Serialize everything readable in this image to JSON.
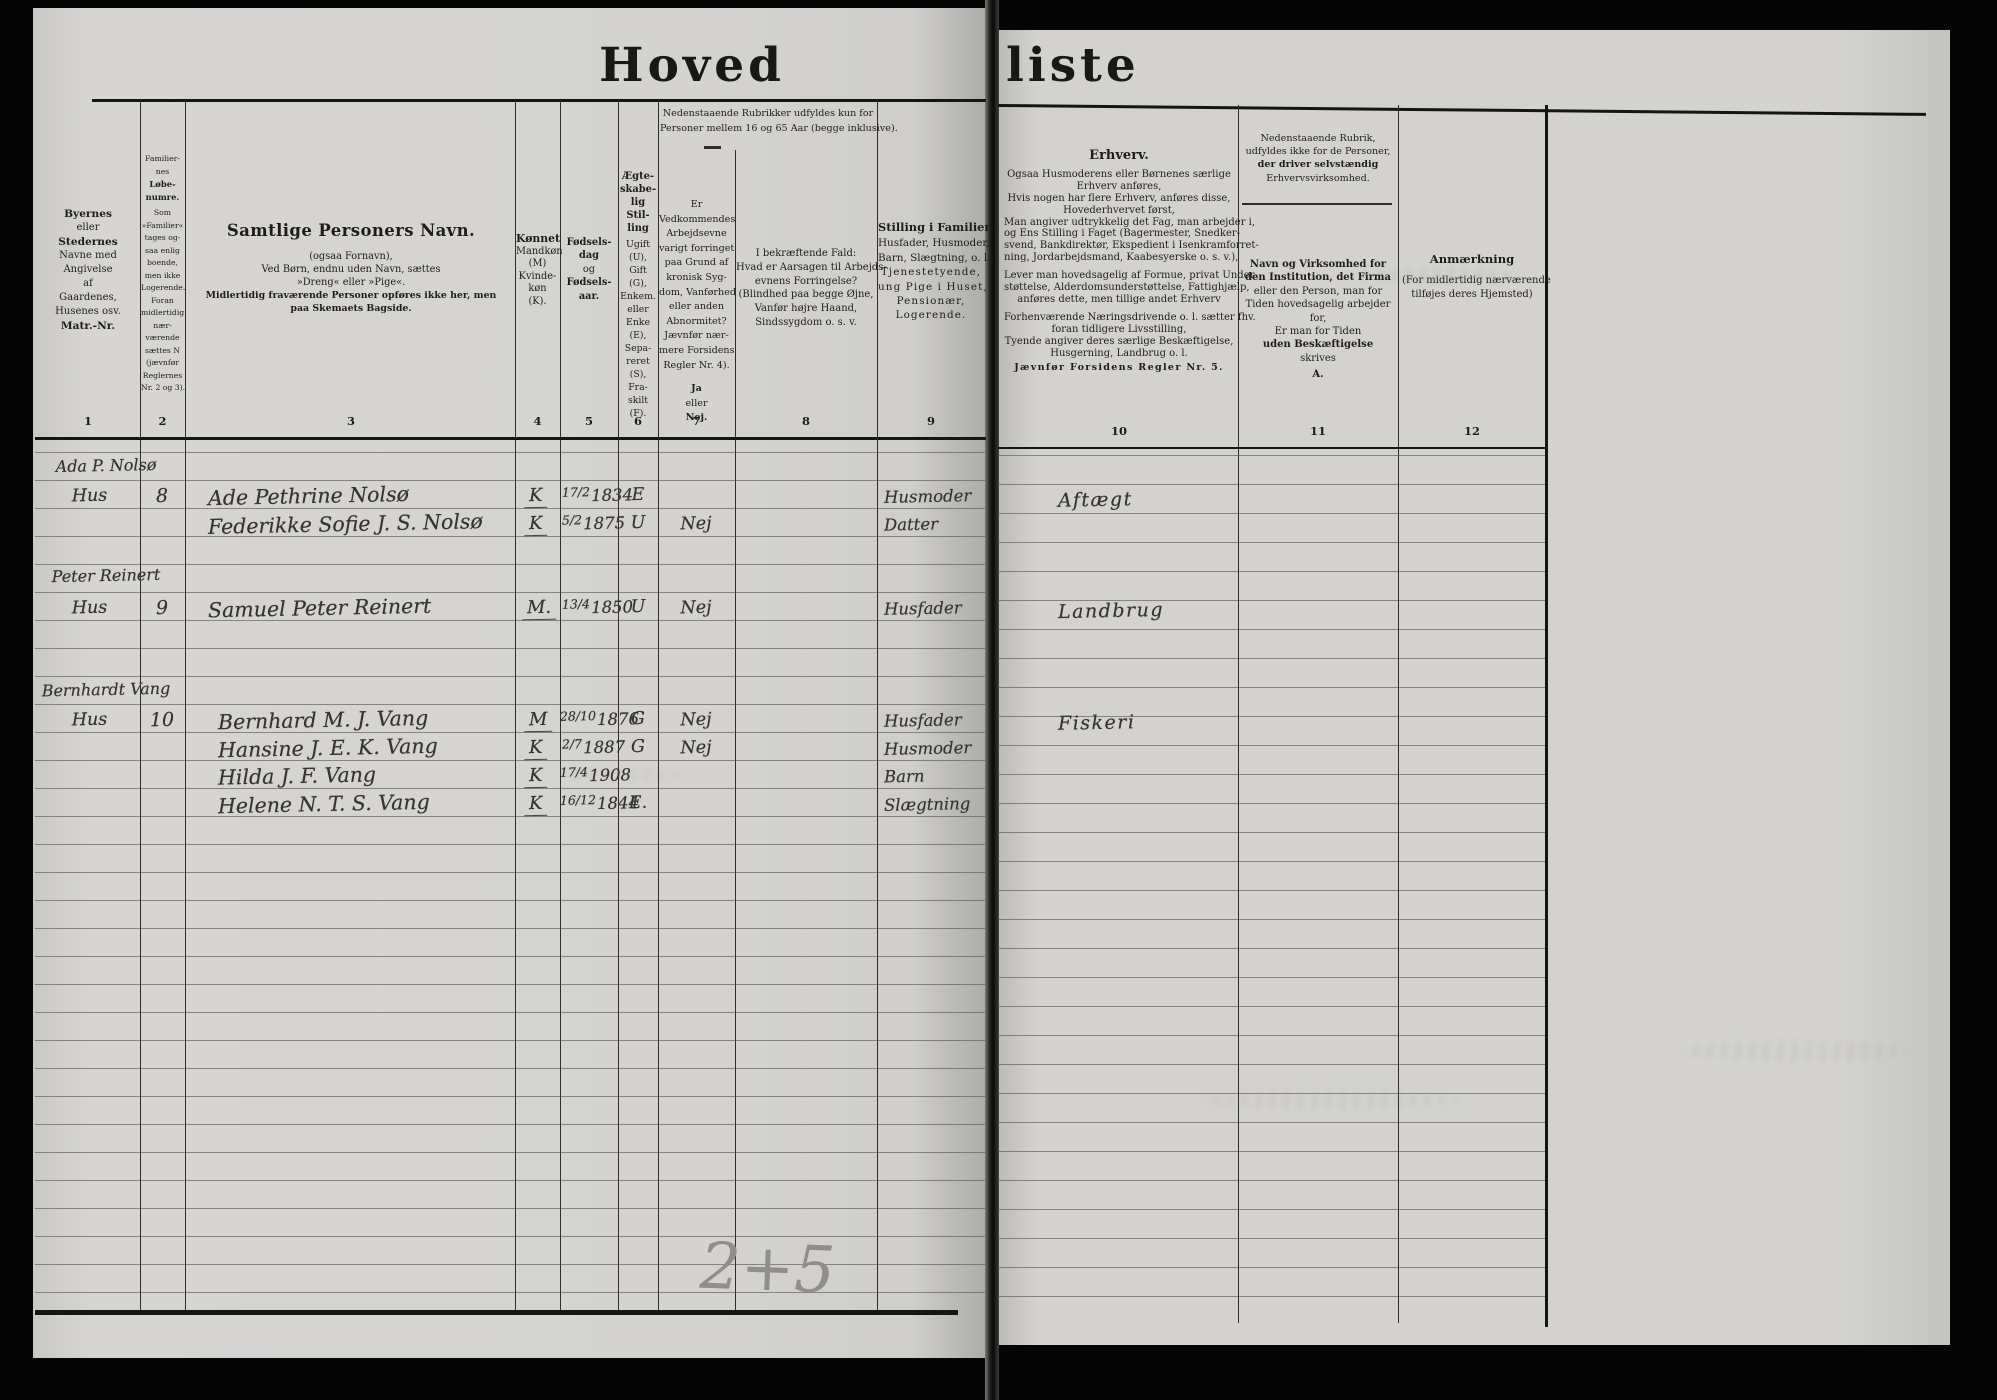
{
  "title": {
    "left_word": "Hoved",
    "right_word": "liste"
  },
  "left": {
    "nums": [
      "1",
      "2",
      "3",
      "4",
      "5",
      "6",
      "7",
      "8",
      "9"
    ],
    "col1": [
      "Byernes",
      "eller",
      "Stedernes",
      "Navne med",
      "Angivelse",
      "af",
      "Gaardenes,",
      "Husenes osv.",
      "Matr.-Nr."
    ],
    "col2": [
      "Familier-",
      "nes",
      "Løbe-",
      "numre.",
      "Som",
      "»Familier«",
      "tages og-",
      "saa enlig",
      "boende,",
      "men ikke",
      "Logerende.",
      "Foran",
      "midlertidig",
      "nær-",
      "værende",
      "sættes N",
      "(jævnfør",
      "Reglernes",
      "Nr. 2 og 3)."
    ],
    "col3_title": "Samtlige Personers Navn.",
    "col3_sub": [
      "(ogsaa Fornavn),",
      "Ved Børn, endnu uden Navn, sættes",
      "»Dreng« eller »Pige«.",
      "Midlertidig fraværende Personer opføres ikke her, men",
      "paa Skemaets Bagside."
    ],
    "col4": [
      "Kønnet",
      "Mandkøn",
      "(M)",
      "Kvinde-",
      "køn",
      "(K)."
    ],
    "col5": [
      "Fødsels-",
      "dag",
      "og",
      "Fødsels-",
      "aar."
    ],
    "col6": [
      "Ægte-",
      "skabe-",
      "lig",
      "Stil-",
      "ling",
      "Ugift",
      "(U),",
      "Gift",
      "(G),",
      "Enkem.",
      "eller",
      "Enke",
      "(E),",
      "Sepa-",
      "reret",
      "(S),",
      "Fra-",
      "skilt",
      "(F)."
    ],
    "span78": [
      "Nedenstaaende Rubrikker udfyldes kun for",
      "Personer mellem 16 og 65 Aar (begge inklusive)."
    ],
    "col7": [
      "Er",
      "Vedkommendes",
      "Arbejdsevne",
      "varigt forringet",
      "paa Grund af",
      "kronisk Syg-",
      "dom, Vanførhed",
      "eller anden",
      "Abnormitet?",
      "Jævnfør nær-",
      "mere Forsidens",
      "Regler Nr. 4).",
      "Ja",
      "eller",
      "Nej."
    ],
    "col8": [
      "I bekræftende Fald:",
      "Hvad er Aarsagen til Arbejds-",
      "evnens Forringelse?",
      "(Blindhed paa begge Øjne,",
      "Vanfør højre Haand,",
      "Sindssygdom o. s. v."
    ],
    "col9": [
      "Stilling i Familien.",
      "Husfader, Husmoder,",
      "Barn, Slægtning, o. l.;",
      "Tjenestetyende,",
      "ung Pige i Huset,",
      "Pensionær,",
      "Logerende."
    ]
  },
  "right": {
    "nums": [
      "10",
      "11",
      "12"
    ],
    "col10": [
      "Erhverv.",
      "Ogsaa Husmoderens eller Børnenes særlige",
      "Erhverv anføres,",
      "Hvis nogen har flere Erhverv, anføres disse,",
      "Hovederhvervet først,",
      "Man angiver udtrykkelig det Fag, man arbejder i,",
      "og Ens Stilling i Faget (Bagermester, Snedker-",
      "svend, Bankdirektør, Ekspedient i Isenkramforret-",
      "ning, Jordarbejdsmand, Kaabesyerske o. s. v.),",
      "Lever man hovedsagelig af Formue, privat Under-",
      "støttelse, Alderdomsunderstøttelse, Fattighjælp,",
      "anføres dette, men tillige andet Erhverv",
      "Forhenværende Næringsdrivende o. l. sætter fhv.",
      "foran tidligere Livsstilling,",
      "Tyende angiver deres særlige Beskæftigelse,",
      "Husgerning, Landbrug o. l.",
      "Jævnfør Forsidens Regler Nr. 5."
    ],
    "col11_top": [
      "Nedenstaaende Rubrik,",
      "udfyldes ikke for de Personer,",
      "der driver selvstændig",
      "Erhvervsvirksomhed."
    ],
    "col11_bottom": [
      "Navn og Virksomhed for",
      "den Institution, det Firma",
      "eller den Person, man for",
      "Tiden hovedsagelig arbejder",
      "for,",
      "Er man for Tiden",
      "uden Beskæftigelse",
      "skrives",
      "A."
    ],
    "col12": [
      "Anmærkning",
      "(For midlertidig nærværende",
      "tilføjes deres Hjemsted)"
    ]
  },
  "entries": {
    "margins": [
      "Ada P. Nolsø",
      "Peter Reinert",
      "Bernhardt Vang"
    ],
    "rows": [
      {
        "place": "Hus",
        "nr": "8",
        "name": "Ade Pethrine Nolsø",
        "sex": "K",
        "day": "17/2",
        "year": "1834",
        "marital": "E",
        "able": "",
        "position": "Husmoder",
        "occupation": "Aftægt"
      },
      {
        "place": "",
        "nr": "",
        "name": "Federikke Sofie J. S. Nolsø",
        "sex": "K",
        "day": "5/2",
        "year": "1875",
        "marital": "U",
        "able": "Nej",
        "position": "Datter",
        "occupation": ""
      },
      {
        "place": "Hus",
        "nr": "9",
        "name": "Samuel Peter Reinert",
        "sex": "M.",
        "day": "13/4",
        "year": "1850",
        "marital": "U",
        "able": "Nej",
        "position": "Husfader",
        "occupation": "Landbrug"
      },
      {
        "place": "Hus",
        "nr": "10",
        "name": "Bernhard M. J. Vang",
        "sex": "M",
        "day": "28/10",
        "year": "1876",
        "marital": "G",
        "able": "Nej",
        "position": "Husfader",
        "occupation": "Fiskeri"
      },
      {
        "place": "",
        "nr": "",
        "name": "Hansine J. E. K. Vang",
        "sex": "K",
        "day": "2/7",
        "year": "1887",
        "marital": "G",
        "able": "Nej",
        "position": "Husmoder",
        "occupation": ""
      },
      {
        "place": "",
        "nr": "",
        "name": "Hilda J. F. Vang",
        "sex": "K",
        "day": "17/4",
        "year": "1908",
        "marital": "",
        "able": "",
        "position": "Barn",
        "occupation": ""
      },
      {
        "place": "",
        "nr": "",
        "name": "Helene N. T. S. Vang",
        "sex": "K",
        "day": "16/12",
        "year": "1844",
        "marital": "E.",
        "able": "",
        "position": "Slægtning",
        "occupation": ""
      }
    ],
    "pencil": "2+5"
  }
}
